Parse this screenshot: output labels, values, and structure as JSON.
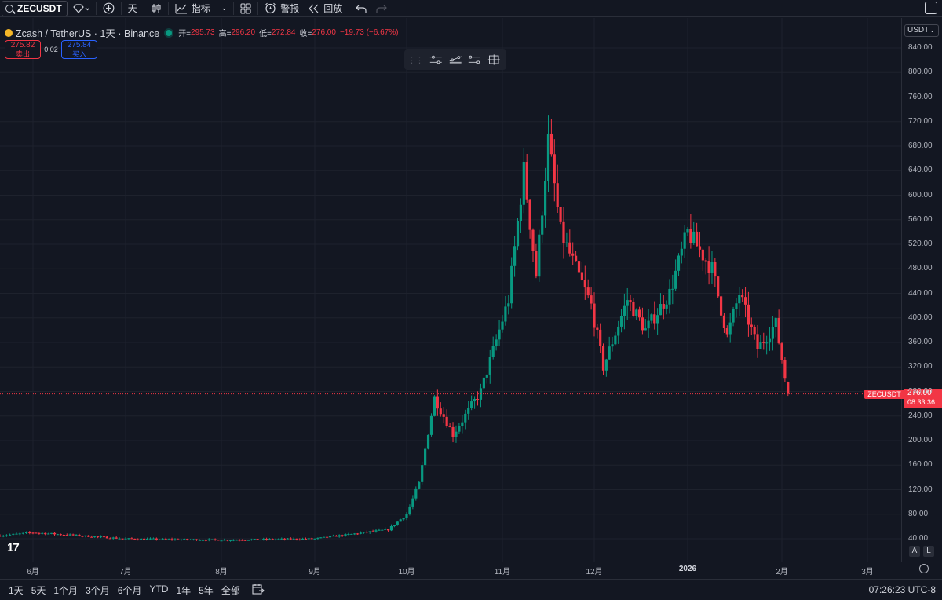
{
  "toolbar": {
    "symbol": "ZECUSDT",
    "interval": "天",
    "indicators_label": "指标",
    "alert_label": "警报",
    "replay_label": "回放"
  },
  "legend": {
    "title": "Zcash / TetherUS · 1天 · Binance",
    "open_label": "开=",
    "open": "295.73",
    "high_label": "高=",
    "high": "296.20",
    "low_label": "低=",
    "low": "272.84",
    "close_label": "收=",
    "close": "276.00",
    "change": "−19.73 (−6.67%)"
  },
  "trade": {
    "sell_price": "275.82",
    "sell_label": "卖出",
    "spread": "0.02",
    "buy_price": "275.84",
    "buy_label": "买入"
  },
  "currency_selector": "USDT",
  "price_axis_ticks": [
    "840.00",
    "800.00",
    "760.00",
    "720.00",
    "680.00",
    "640.00",
    "600.00",
    "560.00",
    "520.00",
    "480.00",
    "440.00",
    "400.00",
    "360.00",
    "320.00",
    "280.00",
    "240.00",
    "200.00",
    "160.00",
    "120.00",
    "80.00",
    "40.00"
  ],
  "time_axis_labels": [
    "6月",
    "7月",
    "8月",
    "9月",
    "10月",
    "11月",
    "12月",
    "2026",
    "2月",
    "3月"
  ],
  "price_marker": {
    "symbol": "ZECUSDT",
    "price": "276.00",
    "countdown": "08:33:36"
  },
  "scale_buttons": {
    "auto": "A",
    "log": "L"
  },
  "ranges": [
    "1天",
    "5天",
    "1个月",
    "3个月",
    "6个月",
    "YTD",
    "1年",
    "5年",
    "全部"
  ],
  "clock": "07:26:23 UTC-8",
  "colors": {
    "up": "#089981",
    "down": "#f23645",
    "background": "#131722",
    "grid": "#1e222d"
  },
  "chart_data": {
    "type": "candlestick",
    "symbol": "ZECUSDT",
    "interval": "1D",
    "ylim": [
      40,
      840
    ],
    "keypoints": [
      {
        "date": "2025-05-22",
        "price": 45
      },
      {
        "date": "2025-06-01",
        "price": 50
      },
      {
        "date": "2025-07-01",
        "price": 40
      },
      {
        "date": "2025-08-01",
        "price": 38
      },
      {
        "date": "2025-09-01",
        "price": 40
      },
      {
        "date": "2025-09-25",
        "price": 55
      },
      {
        "date": "2025-10-01",
        "price": 80
      },
      {
        "date": "2025-10-05",
        "price": 130
      },
      {
        "date": "2025-10-10",
        "price": 270
      },
      {
        "date": "2025-10-16",
        "price": 210
      },
      {
        "date": "2025-10-25",
        "price": 280
      },
      {
        "date": "2025-11-03",
        "price": 430
      },
      {
        "date": "2025-11-08",
        "price": 640
      },
      {
        "date": "2025-11-12",
        "price": 470
      },
      {
        "date": "2025-11-16",
        "price": 690
      },
      {
        "date": "2025-11-20",
        "price": 540
      },
      {
        "date": "2025-11-30",
        "price": 420
      },
      {
        "date": "2025-12-04",
        "price": 320
      },
      {
        "date": "2025-12-12",
        "price": 430
      },
      {
        "date": "2025-12-18",
        "price": 380
      },
      {
        "date": "2025-12-26",
        "price": 440
      },
      {
        "date": "2026-01-01",
        "price": 540
      },
      {
        "date": "2026-01-09",
        "price": 480
      },
      {
        "date": "2026-01-14",
        "price": 370
      },
      {
        "date": "2026-01-18",
        "price": 440
      },
      {
        "date": "2026-01-24",
        "price": 350
      },
      {
        "date": "2026-01-30",
        "price": 390
      },
      {
        "date": "2026-02-03",
        "price": 276
      }
    ],
    "last": {
      "open": 295.73,
      "high": 296.2,
      "low": 272.84,
      "close": 276.0
    }
  }
}
